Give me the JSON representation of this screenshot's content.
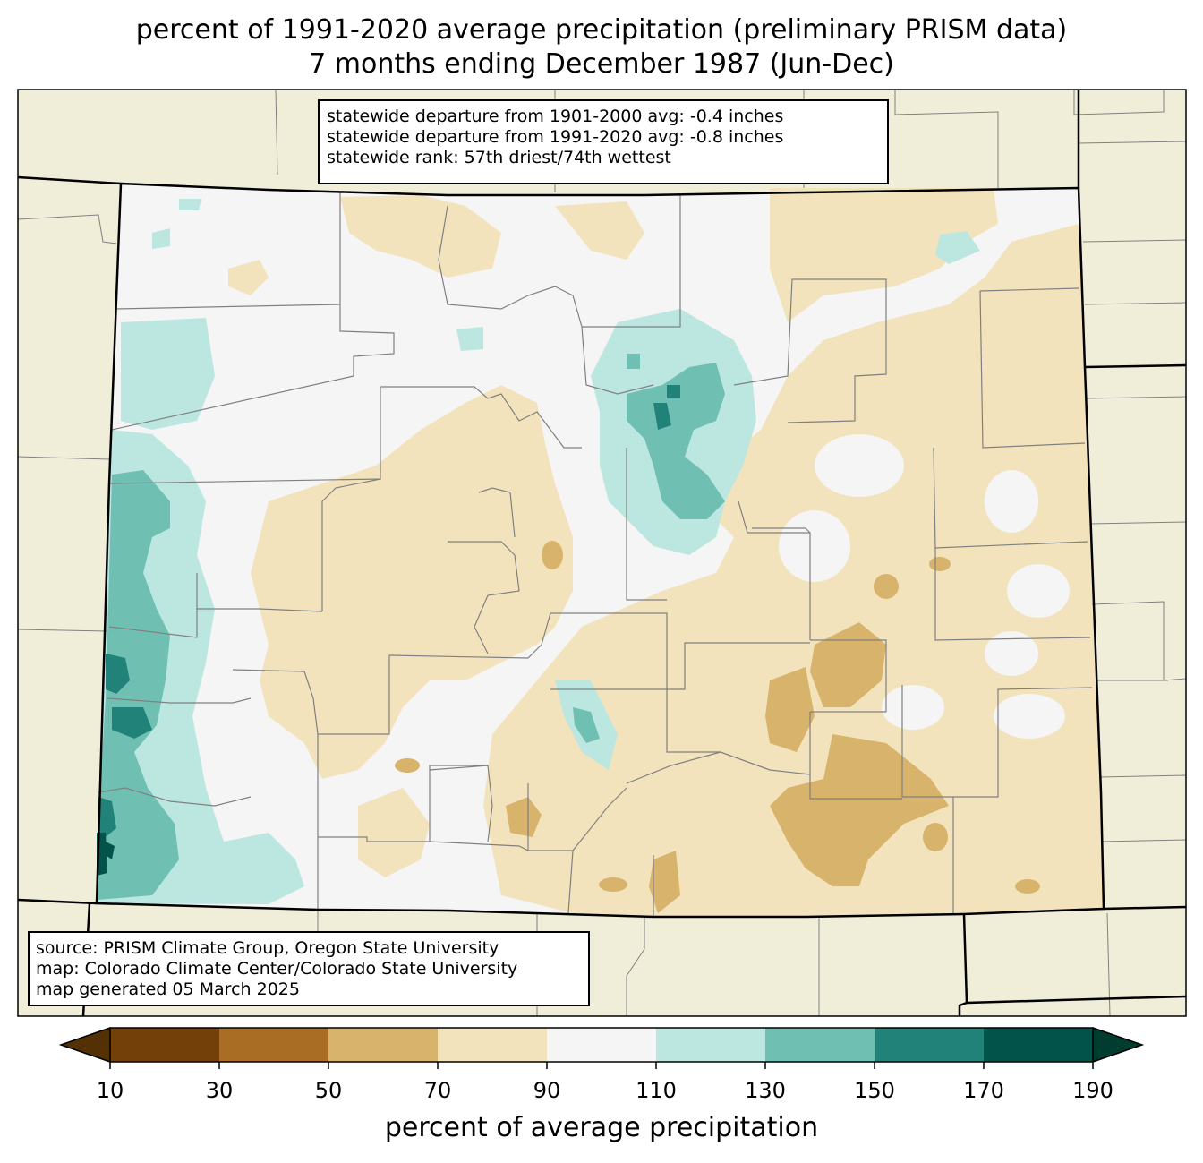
{
  "title": {
    "line1": "percent of 1991-2020 average precipitation (preliminary PRISM data)",
    "line2": "7 months ending December 1987 (Jun-Dec)"
  },
  "stats": {
    "line1": "statewide departure from 1901-2000 avg: -0.4 inches",
    "line2": "statewide departure from 1991-2020 avg: -0.8 inches",
    "line3": "statewide rank: 57th driest/74th wettest"
  },
  "source": {
    "line1": "source: PRISM Climate Group, Oregon State University",
    "line2": "map: Colorado Climate Center/Colorado State University",
    "line3": "map generated 05 March 2025"
  },
  "colorbar": {
    "label": "percent of average precipitation",
    "ticks": [
      "10",
      "30",
      "50",
      "70",
      "90",
      "110",
      "130",
      "150",
      "170",
      "190"
    ],
    "colors": [
      "#543005",
      "#734009",
      "#a96d24",
      "#d8b36b",
      "#f3e3bd",
      "#f4f5f4",
      "#bce6e0",
      "#6fc0b3",
      "#208278",
      "#02534a",
      "#003c30"
    ]
  },
  "map_colors": {
    "outside": "#f0eed9",
    "county_lines": "#808080",
    "state_lines": "#000000"
  }
}
